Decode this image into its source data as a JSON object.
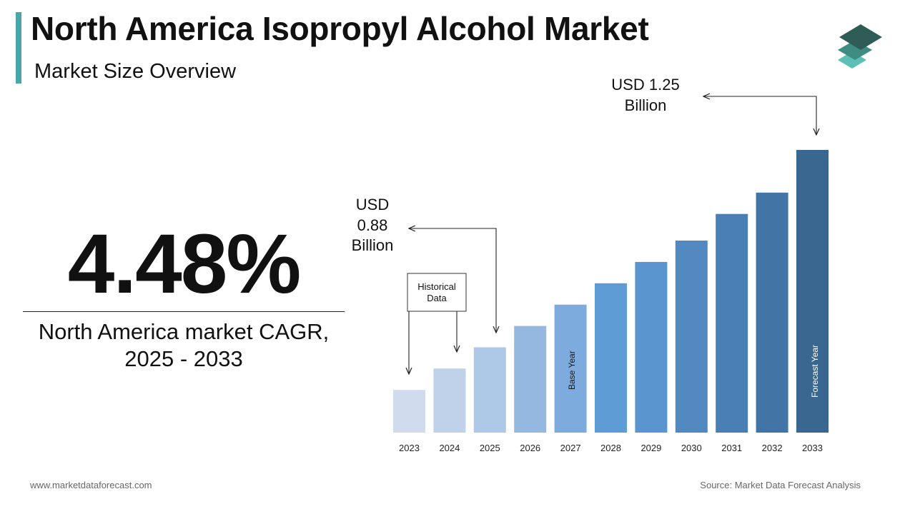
{
  "header": {
    "title": "North America Isopropyl Alcohol Market",
    "subtitle": "Market Size Overview"
  },
  "cagr": {
    "value": "4.48%",
    "caption_line1": "North America market CAGR,",
    "caption_line2": "2025 - 2033"
  },
  "annotations": {
    "start_label_line1": "USD",
    "start_label_line2": "0.88",
    "start_label_line3": "Billion",
    "end_label_line1": "USD 1.25",
    "end_label_line2": "Billion",
    "historical_line1": "Historical",
    "historical_line2": "Data",
    "base_year": "Base Year",
    "forecast_year": "Forecast Year"
  },
  "chart_data": {
    "type": "bar",
    "title": "",
    "xlabel": "",
    "ylabel": "",
    "categories": [
      "2023",
      "2024",
      "2025",
      "2026",
      "2027",
      "2028",
      "2029",
      "2030",
      "2031",
      "2032",
      "2033"
    ],
    "values": [
      0.8,
      0.84,
      0.88,
      0.92,
      0.96,
      1.0,
      1.04,
      1.08,
      1.13,
      1.17,
      1.25
    ],
    "ylim": [
      0.72,
      1.25
    ],
    "grid": false,
    "legend": "none",
    "colors": [
      "#d0dcee",
      "#bfd2ea",
      "#aec8e7",
      "#95b8e0",
      "#7eabdd",
      "#5e9cd6",
      "#5b95cf",
      "#5289c0",
      "#4a7fb6",
      "#4374a6",
      "#3a6790"
    ]
  },
  "footer": {
    "website": "www.marketdataforecast.com",
    "source": "Source: Market Data Forecast Analysis"
  },
  "colors": {
    "accent": "#4aa7a9",
    "logo_dark": "#2f5c56",
    "logo_mid": "#3e8c82",
    "logo_light": "#5cc0b5"
  }
}
